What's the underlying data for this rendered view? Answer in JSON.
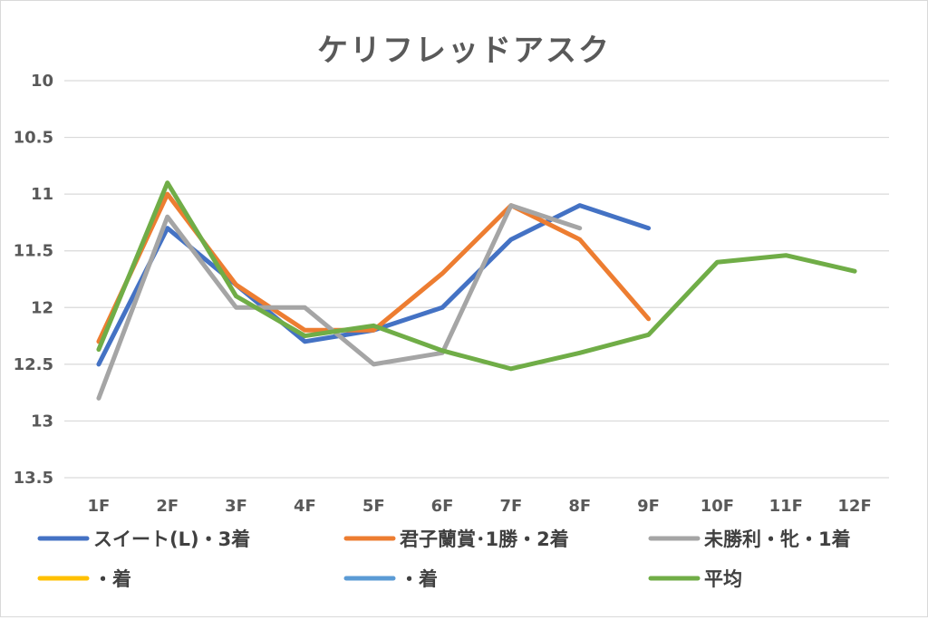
{
  "chart_data": {
    "type": "line",
    "title": "ケリフレッドアスク",
    "categories": [
      "1F",
      "2F",
      "3F",
      "4F",
      "5F",
      "6F",
      "7F",
      "8F",
      "9F",
      "10F",
      "11F",
      "12F"
    ],
    "yticks": [
      "10",
      "10.5",
      "11",
      "11.5",
      "12",
      "12.5",
      "13",
      "13.5"
    ],
    "ylim": [
      10,
      13.5
    ],
    "y_reversed": true,
    "grid": true,
    "legend_position": "bottom",
    "series": [
      {
        "name": "スイート(L)・3着",
        "color": "#4472c4",
        "values": [
          12.5,
          11.3,
          11.8,
          12.3,
          12.2,
          12.0,
          11.4,
          11.1,
          11.3,
          null,
          null,
          null
        ]
      },
      {
        "name": "君子蘭賞･1勝・2着",
        "color": "#ed7d31",
        "values": [
          12.3,
          11.0,
          11.8,
          12.2,
          12.2,
          11.7,
          11.1,
          11.4,
          12.1,
          null,
          null,
          null
        ]
      },
      {
        "name": "未勝利・牝・1着",
        "color": "#a5a5a5",
        "values": [
          12.8,
          11.2,
          12.0,
          12.0,
          12.5,
          12.4,
          11.1,
          11.3,
          null,
          null,
          null,
          null
        ]
      },
      {
        "name": "・着",
        "color": "#ffc000",
        "values": [
          null,
          null,
          null,
          null,
          null,
          null,
          null,
          null,
          null,
          null,
          null,
          null
        ]
      },
      {
        "name": "・着",
        "color": "#5b9bd5",
        "values": [
          null,
          null,
          null,
          null,
          null,
          null,
          null,
          null,
          null,
          null,
          null,
          null
        ]
      },
      {
        "name": "平均",
        "color": "#70ad47",
        "values": [
          12.37,
          10.9,
          11.9,
          12.25,
          12.16,
          12.38,
          12.54,
          12.4,
          12.24,
          11.6,
          11.54,
          11.68
        ]
      }
    ]
  }
}
